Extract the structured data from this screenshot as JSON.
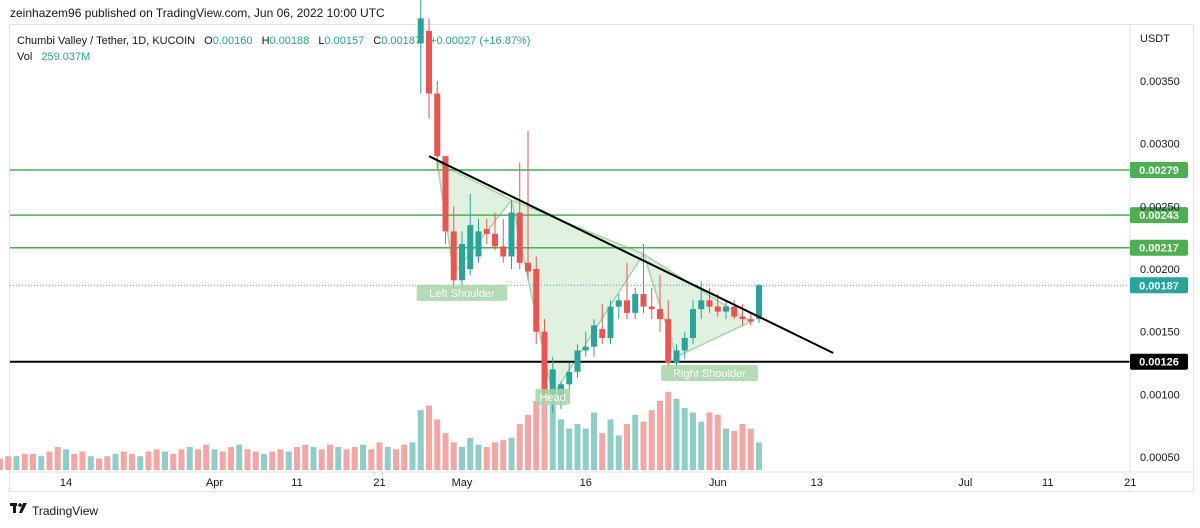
{
  "publisher_line": "zeinhazem96 published on TradingView.com, Jun 06, 2022 10:00 UTC",
  "legend": {
    "symbol": "Chumbi Valley / Tether, 1D, KUCOIN",
    "open_label": "O",
    "open": "0.00160",
    "high_label": "H",
    "high": "0.00188",
    "low_label": "L",
    "low": "0.00157",
    "close_label": "C",
    "close": "0.00187",
    "change": "+0.00027 (+16.87%)",
    "vol_label": "Vol",
    "vol": "259.037M"
  },
  "footer": {
    "brand": "TradingView"
  },
  "colors": {
    "up": "#26a69a",
    "down": "#ef5350",
    "up_vol": "#8dcfc7",
    "down_vol": "#f5a6a4",
    "level": "#4caf50",
    "support": "#000000",
    "trend": "#000000",
    "pattern": "#a5d6a7"
  },
  "chart_data": {
    "type": "candlestick",
    "currency": "USDT",
    "ylim": [
      0.0004,
      0.004
    ],
    "y_ticks": [
      "0.00350",
      "0.00300",
      "0.00250",
      "0.00200",
      "0.00150",
      "0.00100",
      "0.00050"
    ],
    "x_ticks": [
      {
        "label": "14",
        "date": "2022-03-14"
      },
      {
        "label": "Apr",
        "date": "2022-04-01"
      },
      {
        "label": "11",
        "date": "2022-04-11"
      },
      {
        "label": "21",
        "date": "2022-04-21"
      },
      {
        "label": "May",
        "date": "2022-05-01"
      },
      {
        "label": "16",
        "date": "2022-05-16"
      },
      {
        "label": "Jun",
        "date": "2022-06-01"
      },
      {
        "label": "13",
        "date": "2022-06-13"
      },
      {
        "label": "Jul",
        "date": "2022-07-01"
      },
      {
        "label": "11",
        "date": "2022-07-11"
      },
      {
        "label": "21",
        "date": "2022-07-21"
      }
    ],
    "horizontal_levels": [
      {
        "value": 0.00279,
        "label": "0.00279",
        "style": "resistance"
      },
      {
        "value": 0.00243,
        "label": "0.00243",
        "style": "resistance"
      },
      {
        "value": 0.00217,
        "label": "0.00217",
        "style": "resistance"
      },
      {
        "value": 0.00126,
        "label": "0.00126",
        "style": "support"
      }
    ],
    "last_price": {
      "value": 0.00187,
      "label": "0.00187"
    },
    "trend_line": [
      {
        "date": "2022-04-27",
        "value": 0.0029
      },
      {
        "date": "2022-06-15",
        "value": 0.00133
      }
    ],
    "pattern_points": [
      {
        "date": "2022-04-28",
        "value": 0.00285
      },
      {
        "date": "2022-04-30",
        "value": 0.00196
      },
      {
        "date": "2022-05-07",
        "value": 0.00255
      },
      {
        "date": "2022-05-12",
        "value": 0.00099
      },
      {
        "date": "2022-05-23",
        "value": 0.00212
      },
      {
        "date": "2022-05-27",
        "value": 0.0013
      },
      {
        "date": "2022-06-05",
        "value": 0.00158
      }
    ],
    "pattern_labels": [
      {
        "text": "Left Shoulder",
        "date": "2022-05-01",
        "value": 0.00181
      },
      {
        "text": "Head",
        "date": "2022-05-12",
        "value": 0.00098
      },
      {
        "text": "Right Shoulder",
        "date": "2022-05-31",
        "value": 0.00117
      }
    ],
    "candles": [
      {
        "d": "2022-03-04",
        "v": 4
      },
      {
        "d": "2022-03-05",
        "v": 5
      },
      {
        "d": "2022-03-06",
        "v": 5
      },
      {
        "d": "2022-03-07",
        "v": 6
      },
      {
        "d": "2022-03-08",
        "v": 6
      },
      {
        "d": "2022-03-09",
        "v": 7
      },
      {
        "d": "2022-03-10",
        "v": 7
      },
      {
        "d": "2022-03-11",
        "v": 6
      },
      {
        "d": "2022-03-12",
        "v": 8
      },
      {
        "d": "2022-03-13",
        "v": 10
      },
      {
        "d": "2022-03-14",
        "v": 9
      },
      {
        "d": "2022-03-15",
        "v": 7
      },
      {
        "d": "2022-03-16",
        "v": 8
      },
      {
        "d": "2022-03-17",
        "v": 6
      },
      {
        "d": "2022-03-18",
        "v": 5
      },
      {
        "d": "2022-03-19",
        "v": 6
      },
      {
        "d": "2022-03-20",
        "v": 7
      },
      {
        "d": "2022-03-21",
        "v": 8
      },
      {
        "d": "2022-03-22",
        "v": 7
      },
      {
        "d": "2022-03-23",
        "v": 6
      },
      {
        "d": "2022-03-24",
        "v": 8
      },
      {
        "d": "2022-03-25",
        "v": 9
      },
      {
        "d": "2022-03-26",
        "v": 8
      },
      {
        "d": "2022-03-27",
        "v": 7
      },
      {
        "d": "2022-03-28",
        "v": 9
      },
      {
        "d": "2022-03-29",
        "v": 10
      },
      {
        "d": "2022-03-30",
        "v": 9
      },
      {
        "d": "2022-03-31",
        "v": 11
      },
      {
        "d": "2022-04-01",
        "v": 9
      },
      {
        "d": "2022-04-02",
        "v": 8
      },
      {
        "d": "2022-04-03",
        "v": 10
      },
      {
        "d": "2022-04-04",
        "v": 11
      },
      {
        "d": "2022-04-05",
        "v": 9
      },
      {
        "d": "2022-04-06",
        "v": 8
      },
      {
        "d": "2022-04-07",
        "v": 7
      },
      {
        "d": "2022-04-08",
        "v": 8
      },
      {
        "d": "2022-04-09",
        "v": 9
      },
      {
        "d": "2022-04-10",
        "v": 8
      },
      {
        "d": "2022-04-11",
        "v": 10
      },
      {
        "d": "2022-04-12",
        "v": 11
      },
      {
        "d": "2022-04-13",
        "v": 10
      },
      {
        "d": "2022-04-14",
        "v": 9
      },
      {
        "d": "2022-04-15",
        "v": 11
      },
      {
        "d": "2022-04-16",
        "v": 10
      },
      {
        "d": "2022-04-17",
        "v": 9
      },
      {
        "d": "2022-04-18",
        "v": 10
      },
      {
        "d": "2022-04-19",
        "v": 11
      },
      {
        "d": "2022-04-20",
        "v": 9
      },
      {
        "d": "2022-04-21",
        "v": 12
      },
      {
        "d": "2022-04-22",
        "v": 10
      },
      {
        "d": "2022-04-23",
        "v": 9
      },
      {
        "d": "2022-04-24",
        "v": 11
      },
      {
        "d": "2022-04-25",
        "v": 12
      },
      {
        "d": "2022-04-26",
        "v": 26,
        "o": 0.0038,
        "h": 0.0042,
        "l": 0.0034,
        "c": 0.004
      },
      {
        "d": "2022-04-27",
        "v": 28,
        "o": 0.0039,
        "h": 0.004,
        "l": 0.0032,
        "c": 0.0034
      },
      {
        "d": "2022-04-28",
        "v": 22,
        "o": 0.0034,
        "h": 0.0035,
        "l": 0.0028,
        "c": 0.0029
      },
      {
        "d": "2022-04-29",
        "v": 16,
        "o": 0.0029,
        "h": 0.0029,
        "l": 0.0022,
        "c": 0.0023
      },
      {
        "d": "2022-04-30",
        "v": 12,
        "o": 0.0023,
        "h": 0.0025,
        "l": 0.00185,
        "c": 0.00191
      },
      {
        "d": "2022-05-01",
        "v": 10,
        "o": 0.00191,
        "h": 0.0023,
        "l": 0.00185,
        "c": 0.0022
      },
      {
        "d": "2022-05-02",
        "v": 14,
        "o": 0.002,
        "h": 0.0026,
        "l": 0.00195,
        "c": 0.00235
      },
      {
        "d": "2022-05-03",
        "v": 11,
        "o": 0.0021,
        "h": 0.0024,
        "l": 0.00205,
        "c": 0.0023
      },
      {
        "d": "2022-05-04",
        "v": 10,
        "o": 0.00232,
        "h": 0.0024,
        "l": 0.0022,
        "c": 0.00228
      },
      {
        "d": "2022-05-05",
        "v": 12,
        "o": 0.00228,
        "h": 0.00245,
        "l": 0.00215,
        "c": 0.00218
      },
      {
        "d": "2022-05-06",
        "v": 13,
        "o": 0.00218,
        "h": 0.0024,
        "l": 0.00205,
        "c": 0.0021
      },
      {
        "d": "2022-05-07",
        "v": 14,
        "o": 0.0021,
        "h": 0.00255,
        "l": 0.002,
        "c": 0.00245
      },
      {
        "d": "2022-05-08",
        "v": 20,
        "o": 0.00245,
        "h": 0.00285,
        "l": 0.002,
        "c": 0.00205
      },
      {
        "d": "2022-05-09",
        "v": 24,
        "o": 0.00205,
        "h": 0.0031,
        "l": 0.00192,
        "c": 0.00198
      },
      {
        "d": "2022-05-10",
        "v": 30,
        "o": 0.002,
        "h": 0.0021,
        "l": 0.0014,
        "c": 0.0015
      },
      {
        "d": "2022-05-11",
        "v": 34,
        "o": 0.0015,
        "h": 0.0016,
        "l": 0.00095,
        "c": 0.001
      },
      {
        "d": "2022-05-12",
        "v": 32,
        "o": 0.001,
        "h": 0.0013,
        "l": 0.00085,
        "c": 0.0012
      },
      {
        "d": "2022-05-13",
        "v": 22,
        "o": 0.00095,
        "h": 0.0011,
        "l": 0.00088,
        "c": 0.00108
      },
      {
        "d": "2022-05-14",
        "v": 18,
        "o": 0.00108,
        "h": 0.00125,
        "l": 0.001,
        "c": 0.00118
      },
      {
        "d": "2022-05-15",
        "v": 20,
        "o": 0.00118,
        "h": 0.0014,
        "l": 0.00113,
        "c": 0.00135
      },
      {
        "d": "2022-05-16",
        "v": 18,
        "o": 0.00135,
        "h": 0.0015,
        "l": 0.0013,
        "c": 0.00138
      },
      {
        "d": "2022-05-17",
        "v": 25,
        "o": 0.00138,
        "h": 0.0016,
        "l": 0.0013,
        "c": 0.00155
      },
      {
        "d": "2022-05-18",
        "v": 16,
        "o": 0.00152,
        "h": 0.00172,
        "l": 0.0014,
        "c": 0.00145
      },
      {
        "d": "2022-05-19",
        "v": 22,
        "o": 0.00145,
        "h": 0.00175,
        "l": 0.0014,
        "c": 0.0017
      },
      {
        "d": "2022-05-20",
        "v": 15,
        "o": 0.0017,
        "h": 0.0018,
        "l": 0.0016,
        "c": 0.00175
      },
      {
        "d": "2022-05-21",
        "v": 20,
        "o": 0.00175,
        "h": 0.00205,
        "l": 0.0016,
        "c": 0.00165
      },
      {
        "d": "2022-05-22",
        "v": 24,
        "o": 0.00165,
        "h": 0.00185,
        "l": 0.0016,
        "c": 0.0018
      },
      {
        "d": "2022-05-23",
        "v": 21,
        "o": 0.0018,
        "h": 0.0022,
        "l": 0.00165,
        "c": 0.0017
      },
      {
        "d": "2022-05-24",
        "v": 26,
        "o": 0.0017,
        "h": 0.00185,
        "l": 0.0016,
        "c": 0.00168
      },
      {
        "d": "2022-05-25",
        "v": 30,
        "o": 0.00168,
        "h": 0.00195,
        "l": 0.0015,
        "c": 0.0016
      },
      {
        "d": "2022-05-26",
        "v": 34,
        "o": 0.0016,
        "h": 0.00175,
        "l": 0.0012,
        "c": 0.00125
      },
      {
        "d": "2022-05-27",
        "v": 31,
        "o": 0.00125,
        "h": 0.0014,
        "l": 0.00118,
        "c": 0.00135
      },
      {
        "d": "2022-05-28",
        "v": 27,
        "o": 0.00135,
        "h": 0.0015,
        "l": 0.00128,
        "c": 0.00145
      },
      {
        "d": "2022-05-29",
        "v": 25,
        "o": 0.00145,
        "h": 0.00175,
        "l": 0.0014,
        "c": 0.00168
      },
      {
        "d": "2022-05-30",
        "v": 21,
        "o": 0.00168,
        "h": 0.0019,
        "l": 0.0016,
        "c": 0.00175
      },
      {
        "d": "2022-05-31",
        "v": 25,
        "o": 0.00175,
        "h": 0.00185,
        "l": 0.00165,
        "c": 0.0017
      },
      {
        "d": "2022-06-01",
        "v": 24,
        "o": 0.0017,
        "h": 0.0018,
        "l": 0.00162,
        "c": 0.00166
      },
      {
        "d": "2022-06-02",
        "v": 18,
        "o": 0.00166,
        "h": 0.00175,
        "l": 0.0016,
        "c": 0.0017
      },
      {
        "d": "2022-06-03",
        "v": 17,
        "o": 0.0017,
        "h": 0.00175,
        "l": 0.0016,
        "c": 0.00162
      },
      {
        "d": "2022-06-04",
        "v": 20,
        "o": 0.00162,
        "h": 0.00172,
        "l": 0.00155,
        "c": 0.0016
      },
      {
        "d": "2022-06-05",
        "v": 18,
        "o": 0.0016,
        "h": 0.00165,
        "l": 0.00155,
        "c": 0.00158
      },
      {
        "d": "2022-06-06",
        "v": 12,
        "o": 0.0016,
        "h": 0.00188,
        "l": 0.00157,
        "c": 0.00187
      }
    ]
  }
}
